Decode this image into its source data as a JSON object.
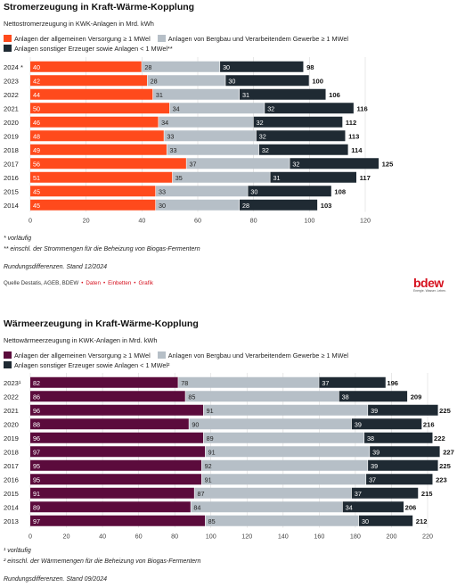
{
  "colors": {
    "strom_orange": "#ff4a1c",
    "waerme_purple": "#5b0b3c",
    "grey": "#b6bfc7",
    "dark": "#1f2a33",
    "brand_red": "#d6121f"
  },
  "logo": {
    "word": "bdew",
    "tagline": "Energie. Wasser. Leben."
  },
  "strom": {
    "title": "Stromerzeugung in Kraft-Wärme-Kopplung",
    "subtitle": "Nettostromerzeugung in KWK-Anlagen in Mrd. kWh",
    "legend": [
      "Anlagen der allgemeinen Versorgung ≥ 1 MWel",
      "Anlagen von Bergbau und Verarbeitendem Gewerbe ≥ 1 MWel",
      "Anlagen sonstiger Erzeuger sowie Anlagen < 1 MWel**"
    ],
    "notes": [
      "* vorläufig",
      "** einschl. der Strommengen für die Beheizung von Biogas-Fermentern",
      "Rundungsdifferenzen. Stand 12/2024"
    ],
    "source": {
      "text": "Quelle Destatis, AGEB, BDEW",
      "links": [
        "Daten",
        "Einbetten",
        "Grafik"
      ]
    }
  },
  "waerme": {
    "title": "Wärmeerzeugung in Kraft-Wärme-Kopplung",
    "subtitle": "Nettowärmeerzeugung in KWK-Anlagen in Mrd. kWh",
    "legend": [
      "Anlagen der allgemeinen Versorgung ≥ 1 MWel",
      "Anlagen von Bergbau und Verarbeitendem Gewerbe ≥ 1 MWel",
      "Anlagen sonstiger Erzeuger sowie Anlagen < 1 MWel²"
    ],
    "notes": [
      "¹ vorläufig",
      "² einschl. der Wärmemengen für die Beheizung von Biogas-Fermentern",
      "Rundungsdifferenzen. Stand 09/2024"
    ]
  },
  "chart_data": [
    {
      "type": "bar",
      "orientation": "horizontal",
      "stacked": true,
      "title": "Stromerzeugung in Kraft-Wärme-Kopplung",
      "subtitle": "Nettostromerzeugung in KWK-Anlagen in Mrd. kWh",
      "categories": [
        "2024 *",
        "2023",
        "2022",
        "2021",
        "2020",
        "2019",
        "2018",
        "2017",
        "2016",
        "2015",
        "2014"
      ],
      "series": [
        {
          "name": "Anlagen der allgemeinen Versorgung ≥ 1 MWel",
          "color": "#ff4a1c",
          "values": [
            40,
            42,
            44,
            50,
            46,
            48,
            49,
            56,
            51,
            45,
            45
          ]
        },
        {
          "name": "Anlagen von Bergbau und Verarbeitendem Gewerbe ≥ 1 MWel",
          "color": "#b6bfc7",
          "values": [
            28,
            28,
            31,
            34,
            34,
            33,
            33,
            37,
            35,
            33,
            30
          ]
        },
        {
          "name": "Anlagen sonstiger Erzeuger sowie Anlagen < 1 MWel**",
          "color": "#1f2a33",
          "values": [
            30,
            30,
            31,
            32,
            32,
            32,
            32,
            32,
            31,
            30,
            28
          ]
        }
      ],
      "totals": [
        98,
        100,
        106,
        116,
        112,
        113,
        114,
        125,
        117,
        108,
        103
      ],
      "xlim": [
        0,
        140
      ],
      "xticks": [
        0,
        20,
        40,
        60,
        80,
        100,
        120
      ],
      "grid": true,
      "legend": "top"
    },
    {
      "type": "bar",
      "orientation": "horizontal",
      "stacked": true,
      "title": "Wärmeerzeugung in Kraft-Wärme-Kopplung",
      "subtitle": "Nettowärmeerzeugung in KWK-Anlagen in Mrd. kWh",
      "categories": [
        "2023¹",
        "2022",
        "2021",
        "2020",
        "2019",
        "2018",
        "2017",
        "2016",
        "2015",
        "2014",
        "2013"
      ],
      "series": [
        {
          "name": "Anlagen der allgemeinen Versorgung ≥ 1 MWel",
          "color": "#5b0b3c",
          "values": [
            82,
            86,
            96,
            88,
            96,
            97,
            95,
            95,
            91,
            89,
            97
          ]
        },
        {
          "name": "Anlagen von Bergbau und Verarbeitendem Gewerbe ≥ 1 MWel",
          "color": "#b6bfc7",
          "values": [
            78,
            85,
            91,
            90,
            89,
            91,
            92,
            91,
            87,
            84,
            85
          ]
        },
        {
          "name": "Anlagen sonstiger Erzeuger sowie Anlagen < 1 MWel²",
          "color": "#1f2a33",
          "values": [
            37,
            38,
            39,
            39,
            38,
            39,
            39,
            37,
            37,
            34,
            30
          ]
        }
      ],
      "totals": [
        196,
        209,
        225,
        216,
        222,
        227,
        225,
        223,
        215,
        206,
        212
      ],
      "xlim": [
        0,
        235
      ],
      "xticks": [
        0,
        20,
        40,
        60,
        80,
        100,
        120,
        140,
        160,
        180,
        200,
        220
      ],
      "grid": true,
      "legend": "top"
    }
  ]
}
